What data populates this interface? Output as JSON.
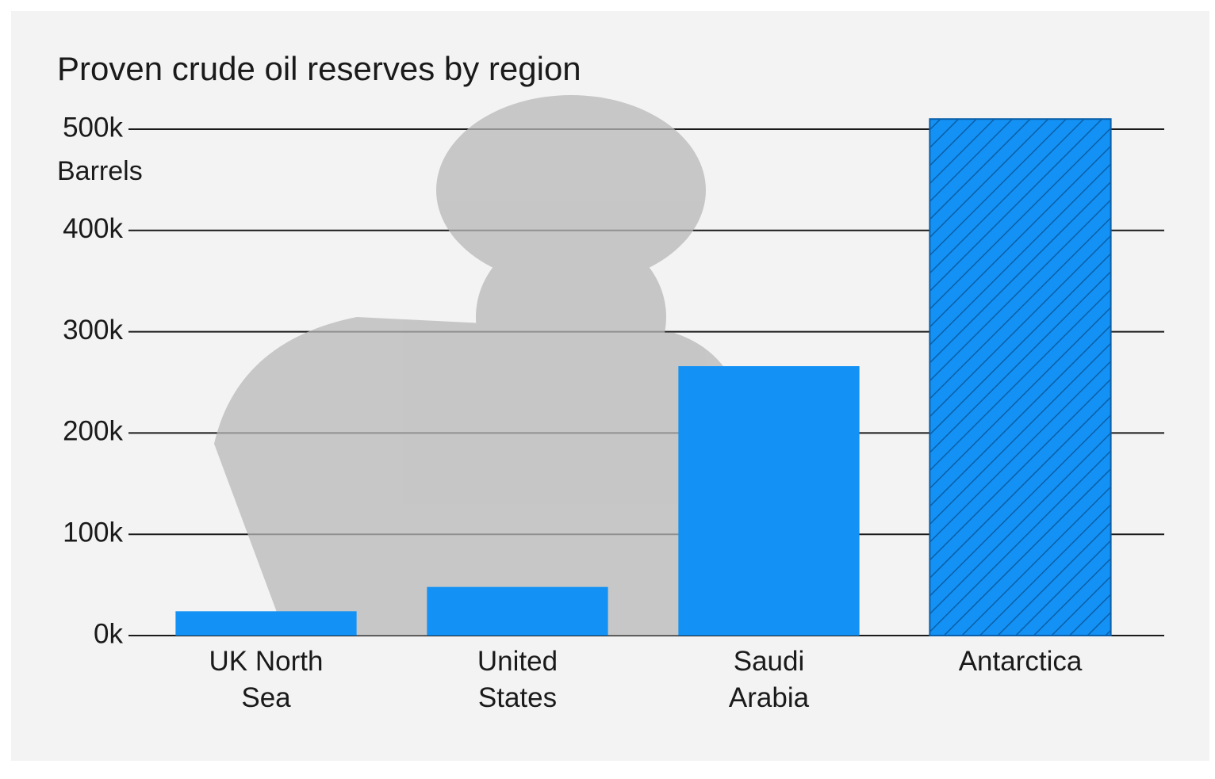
{
  "chart_data": {
    "type": "bar",
    "title": "Proven crude oil reserves by region",
    "y_axis_label": "Barrels",
    "categories": [
      "UK North Sea",
      "United States",
      "Saudi Arabia",
      "Antarctica"
    ],
    "values": [
      24000,
      48000,
      266000,
      510000
    ],
    "color": "#1391f4",
    "hatched": [
      false,
      false,
      false,
      true
    ],
    "ylim": [
      0,
      500000
    ],
    "yticks": [
      {
        "value": 0,
        "label": "0k"
      },
      {
        "value": 100000,
        "label": "100k"
      },
      {
        "value": 200000,
        "label": "200k"
      },
      {
        "value": 300000,
        "label": "300k"
      },
      {
        "value": 400000,
        "label": "400k"
      },
      {
        "value": 500000,
        "label": "500k"
      }
    ],
    "grid": true
  }
}
